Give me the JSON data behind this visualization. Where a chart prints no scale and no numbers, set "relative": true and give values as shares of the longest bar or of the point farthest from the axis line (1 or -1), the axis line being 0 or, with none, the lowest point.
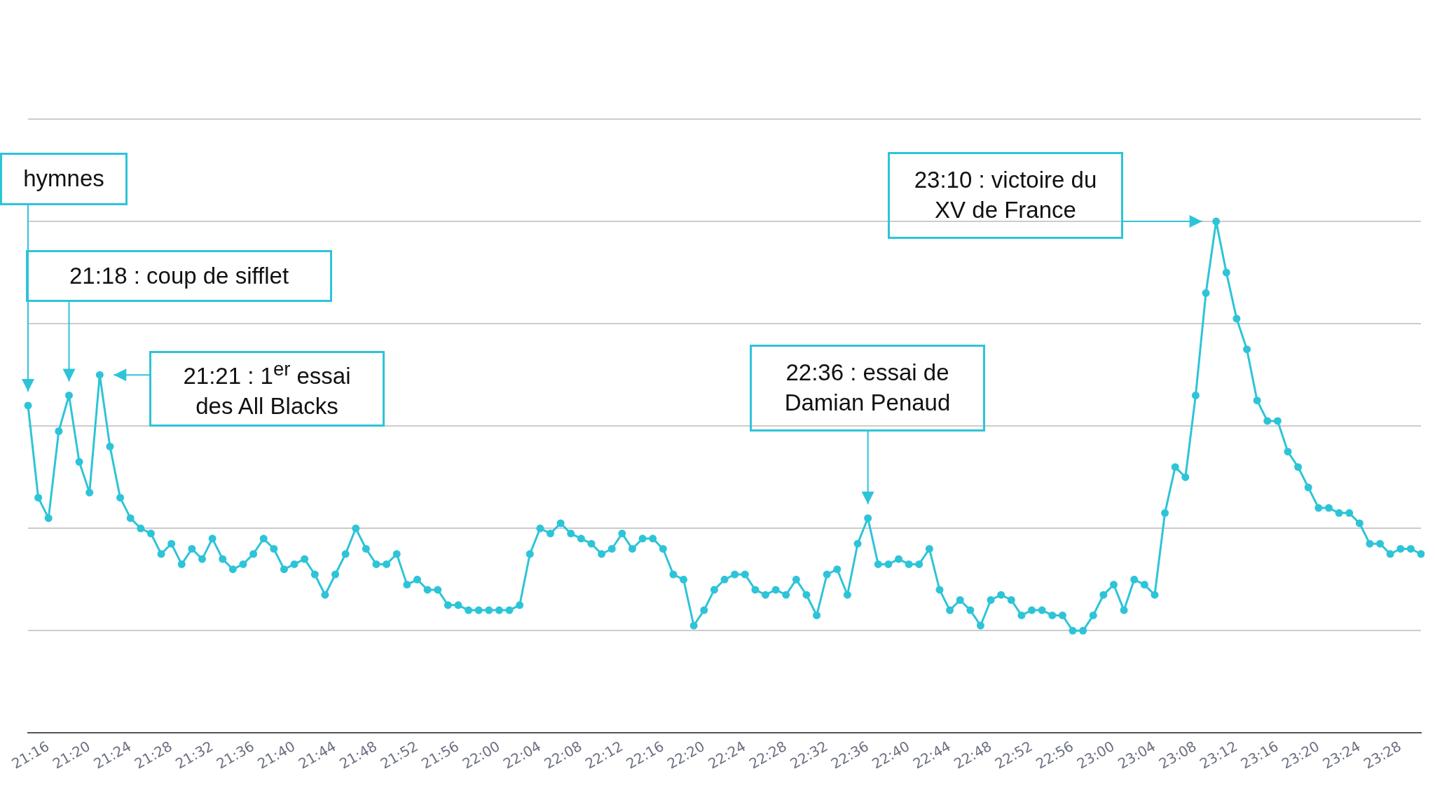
{
  "chart_data": {
    "type": "line",
    "relative": true,
    "color": "#2ec4d8",
    "marker": "circle",
    "grid": "y",
    "categories": [
      null,
      null,
      "21:16",
      null,
      null,
      null,
      "21:20",
      null,
      null,
      null,
      "21:24",
      null,
      null,
      null,
      "21:28",
      null,
      null,
      null,
      "21:32",
      null,
      null,
      null,
      "21:36",
      null,
      null,
      null,
      "21:40",
      null,
      null,
      null,
      "21:44",
      null,
      null,
      null,
      "21:48",
      null,
      null,
      null,
      "21:52",
      null,
      null,
      null,
      "21:56",
      null,
      null,
      null,
      "22:00",
      null,
      null,
      null,
      "22:04",
      null,
      null,
      null,
      "22:08",
      null,
      null,
      null,
      "22:12",
      null,
      null,
      null,
      "22:16",
      null,
      null,
      null,
      "22:20",
      null,
      null,
      null,
      "22:24",
      null,
      null,
      null,
      "22:28",
      null,
      null,
      null,
      "22:32",
      null,
      null,
      null,
      "22:36",
      null,
      null,
      null,
      "22:40",
      null,
      null,
      null,
      "22:44",
      null,
      null,
      null,
      "22:48",
      null,
      null,
      null,
      "22:52",
      null,
      null,
      null,
      "22:56",
      null,
      null,
      null,
      "23:00",
      null,
      null,
      null,
      "23:04",
      null,
      null,
      null,
      "23:08",
      null,
      null,
      null,
      "23:12",
      null,
      null,
      null,
      "23:16",
      null,
      null,
      null,
      "23:20",
      null,
      null,
      null,
      "23:24",
      null,
      null,
      null,
      "23:28",
      null,
      null
    ],
    "values": [
      0.64,
      0.46,
      0.42,
      0.59,
      0.66,
      0.53,
      0.47,
      0.7,
      0.56,
      0.46,
      0.42,
      0.4,
      0.39,
      0.35,
      0.37,
      0.33,
      0.36,
      0.34,
      0.38,
      0.34,
      0.32,
      0.33,
      0.35,
      0.38,
      0.36,
      0.32,
      0.33,
      0.34,
      0.31,
      0.27,
      0.31,
      0.35,
      0.4,
      0.36,
      0.33,
      0.33,
      0.35,
      0.29,
      0.3,
      0.28,
      0.28,
      0.25,
      0.25,
      0.24,
      0.24,
      0.24,
      0.24,
      0.24,
      0.25,
      0.35,
      0.4,
      0.39,
      0.41,
      0.39,
      0.38,
      0.37,
      0.35,
      0.36,
      0.39,
      0.36,
      0.38,
      0.38,
      0.36,
      0.31,
      0.3,
      0.21,
      0.24,
      0.28,
      0.3,
      0.31,
      0.31,
      0.28,
      0.27,
      0.28,
      0.27,
      0.3,
      0.27,
      0.23,
      0.31,
      0.32,
      0.27,
      0.37,
      0.42,
      0.33,
      0.33,
      0.34,
      0.33,
      0.33,
      0.36,
      0.28,
      0.24,
      0.26,
      0.24,
      0.21,
      0.26,
      0.27,
      0.26,
      0.23,
      0.24,
      0.24,
      0.23,
      0.23,
      0.2,
      0.2,
      0.23,
      0.27,
      0.29,
      0.24,
      0.3,
      0.29,
      0.27,
      0.43,
      0.52,
      0.5,
      0.66,
      0.86,
      1,
      0.9,
      0.81,
      0.75,
      0.65,
      0.61,
      0.61,
      0.55,
      0.52,
      0.48,
      0.44,
      0.44,
      0.43,
      0.43,
      0.41,
      0.37,
      0.37,
      0.35,
      0.36,
      0.36,
      0.35
    ],
    "annotations": [
      "hymnes",
      "21:18 : coup de sifflet",
      "21:21 : 1$^{er}$ essai des All Blacks",
      "22:36 : essai de Damian Penaud",
      "23:10 : victoire du XV de France"
    ]
  }
}
